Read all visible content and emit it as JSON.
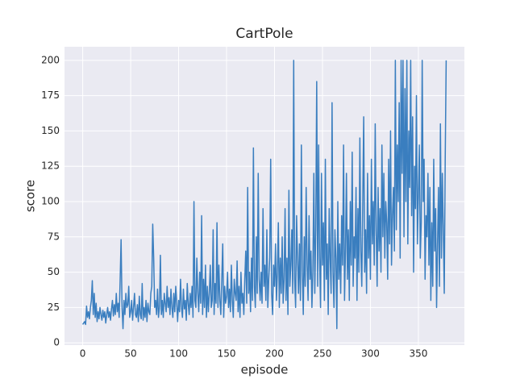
{
  "chart_data": {
    "type": "line",
    "title": "CartPole",
    "x_label": "episode",
    "y_label": "score",
    "color": "#3a7ebf",
    "grid": true,
    "xlim": [
      -19,
      398
    ],
    "ylim": [
      -1.6,
      209.6
    ],
    "xticks": [
      0,
      50,
      100,
      150,
      200,
      250,
      300,
      350
    ],
    "yticks": [
      0,
      25,
      50,
      75,
      100,
      125,
      150,
      175,
      200
    ],
    "x": [
      0,
      1,
      2,
      3,
      4,
      5,
      6,
      7,
      8,
      9,
      10,
      11,
      12,
      13,
      14,
      15,
      16,
      17,
      18,
      19,
      20,
      21,
      22,
      23,
      24,
      25,
      26,
      27,
      28,
      29,
      30,
      31,
      32,
      33,
      34,
      35,
      36,
      37,
      38,
      39,
      40,
      41,
      42,
      43,
      44,
      45,
      46,
      47,
      48,
      49,
      50,
      51,
      52,
      53,
      54,
      55,
      56,
      57,
      58,
      59,
      60,
      61,
      62,
      63,
      64,
      65,
      66,
      67,
      68,
      69,
      70,
      71,
      72,
      73,
      74,
      75,
      76,
      77,
      78,
      79,
      80,
      81,
      82,
      83,
      84,
      85,
      86,
      87,
      88,
      89,
      90,
      91,
      92,
      93,
      94,
      95,
      96,
      97,
      98,
      99,
      100,
      101,
      102,
      103,
      104,
      105,
      106,
      107,
      108,
      109,
      110,
      111,
      112,
      113,
      114,
      115,
      116,
      117,
      118,
      119,
      120,
      121,
      122,
      123,
      124,
      125,
      126,
      127,
      128,
      129,
      130,
      131,
      132,
      133,
      134,
      135,
      136,
      137,
      138,
      139,
      140,
      141,
      142,
      143,
      144,
      145,
      146,
      147,
      148,
      149,
      150,
      151,
      152,
      153,
      154,
      155,
      156,
      157,
      158,
      159,
      160,
      161,
      162,
      163,
      164,
      165,
      166,
      167,
      168,
      169,
      170,
      171,
      172,
      173,
      174,
      175,
      176,
      177,
      178,
      179,
      180,
      181,
      182,
      183,
      184,
      185,
      186,
      187,
      188,
      189,
      190,
      191,
      192,
      193,
      194,
      195,
      196,
      197,
      198,
      199,
      200,
      201,
      202,
      203,
      204,
      205,
      206,
      207,
      208,
      209,
      210,
      211,
      212,
      213,
      214,
      215,
      216,
      217,
      218,
      219,
      220,
      221,
      222,
      223,
      224,
      225,
      226,
      227,
      228,
      229,
      230,
      231,
      232,
      233,
      234,
      235,
      236,
      237,
      238,
      239,
      240,
      241,
      242,
      243,
      244,
      245,
      246,
      247,
      248,
      249,
      250,
      251,
      252,
      253,
      254,
      255,
      256,
      257,
      258,
      259,
      260,
      261,
      262,
      263,
      264,
      265,
      266,
      267,
      268,
      269,
      270,
      271,
      272,
      273,
      274,
      275,
      276,
      277,
      278,
      279,
      280,
      281,
      282,
      283,
      284,
      285,
      286,
      287,
      288,
      289,
      290,
      291,
      292,
      293,
      294,
      295,
      296,
      297,
      298,
      299,
      300,
      301,
      302,
      303,
      304,
      305,
      306,
      307,
      308,
      309,
      310,
      311,
      312,
      313,
      314,
      315,
      316,
      317,
      318,
      319,
      320,
      321,
      322,
      323,
      324,
      325,
      326,
      327,
      328,
      329,
      330,
      331,
      332,
      333,
      334,
      335,
      336,
      337,
      338,
      339,
      340,
      341,
      342,
      343,
      344,
      345,
      346,
      347,
      348,
      349,
      350,
      351,
      352,
      353,
      354,
      355,
      356,
      357,
      358,
      359,
      360,
      361,
      362,
      363,
      364,
      365,
      366,
      367,
      368,
      369,
      370,
      371,
      372,
      373,
      374,
      375,
      376,
      377,
      378,
      379
    ],
    "values": [
      13,
      14,
      15,
      13,
      26,
      18,
      22,
      17,
      25,
      30,
      44,
      20,
      35,
      18,
      28,
      15,
      22,
      17,
      25,
      20,
      16,
      23,
      18,
      22,
      14,
      20,
      25,
      18,
      22,
      16,
      24,
      30,
      19,
      27,
      20,
      35,
      22,
      28,
      18,
      44,
      73,
      25,
      10,
      30,
      20,
      35,
      25,
      27,
      40,
      18,
      22,
      30,
      16,
      25,
      35,
      20,
      18,
      27,
      15,
      33,
      20,
      17,
      42,
      16,
      25,
      18,
      30,
      15,
      28,
      22,
      20,
      35,
      40,
      84,
      60,
      25,
      30,
      20,
      38,
      18,
      25,
      62,
      20,
      30,
      18,
      35,
      28,
      22,
      40,
      25,
      32,
      20,
      38,
      25,
      18,
      35,
      22,
      40,
      28,
      15,
      30,
      22,
      45,
      25,
      18,
      38,
      24,
      30,
      16,
      42,
      28,
      20,
      35,
      25,
      40,
      18,
      100,
      30,
      25,
      60,
      35,
      22,
      50,
      28,
      90,
      20,
      45,
      25,
      55,
      18,
      40,
      22,
      35,
      55,
      25,
      30,
      80,
      20,
      42,
      28,
      85,
      25,
      55,
      30,
      20,
      45,
      70,
      18,
      40,
      28,
      33,
      50,
      25,
      38,
      22,
      55,
      30,
      18,
      45,
      35,
      30,
      58,
      22,
      40,
      18,
      50,
      28,
      35,
      20,
      45,
      65,
      28,
      110,
      35,
      50,
      22,
      60,
      30,
      138,
      40,
      25,
      75,
      35,
      120,
      45,
      30,
      50,
      28,
      95,
      40,
      55,
      30,
      80,
      25,
      45,
      60,
      130,
      35,
      20,
      55,
      40,
      70,
      30,
      50,
      85,
      25,
      60,
      35,
      75,
      28,
      45,
      95,
      30,
      60,
      20,
      108,
      40,
      55,
      80,
      35,
      200,
      45,
      25,
      90,
      60,
      35,
      70,
      30,
      140,
      50,
      20,
      75,
      40,
      110,
      55,
      30,
      90,
      45,
      65,
      25,
      50,
      120,
      35,
      80,
      185,
      40,
      140,
      60,
      25,
      120,
      55,
      85,
      30,
      130,
      45,
      70,
      20,
      95,
      60,
      35,
      170,
      50,
      25,
      80,
      60,
      10,
      100,
      45,
      70,
      35,
      90,
      55,
      140,
      30,
      65,
      120,
      45,
      80,
      30,
      100,
      55,
      135,
      40,
      75,
      60,
      110,
      30,
      95,
      50,
      145,
      65,
      40,
      100,
      160,
      50,
      80,
      35,
      120,
      60,
      90,
      45,
      130,
      70,
      100,
      55,
      155,
      80,
      40,
      110,
      65,
      95,
      50,
      140,
      75,
      120,
      60,
      100,
      85,
      45,
      130,
      70,
      150,
      55,
      90,
      110,
      65,
      200,
      80,
      140,
      100,
      170,
      60,
      200,
      120,
      200,
      75,
      180,
      100,
      200,
      70,
      150,
      110,
      200,
      90,
      160,
      50,
      125,
      95,
      175,
      70,
      105,
      140,
      60,
      85,
      200,
      100,
      130,
      45,
      90,
      75,
      120,
      55,
      110,
      30,
      85,
      40,
      130,
      65,
      95,
      25,
      70,
      110,
      40,
      155,
      60,
      120,
      80,
      35,
      130,
      200
    ]
  }
}
